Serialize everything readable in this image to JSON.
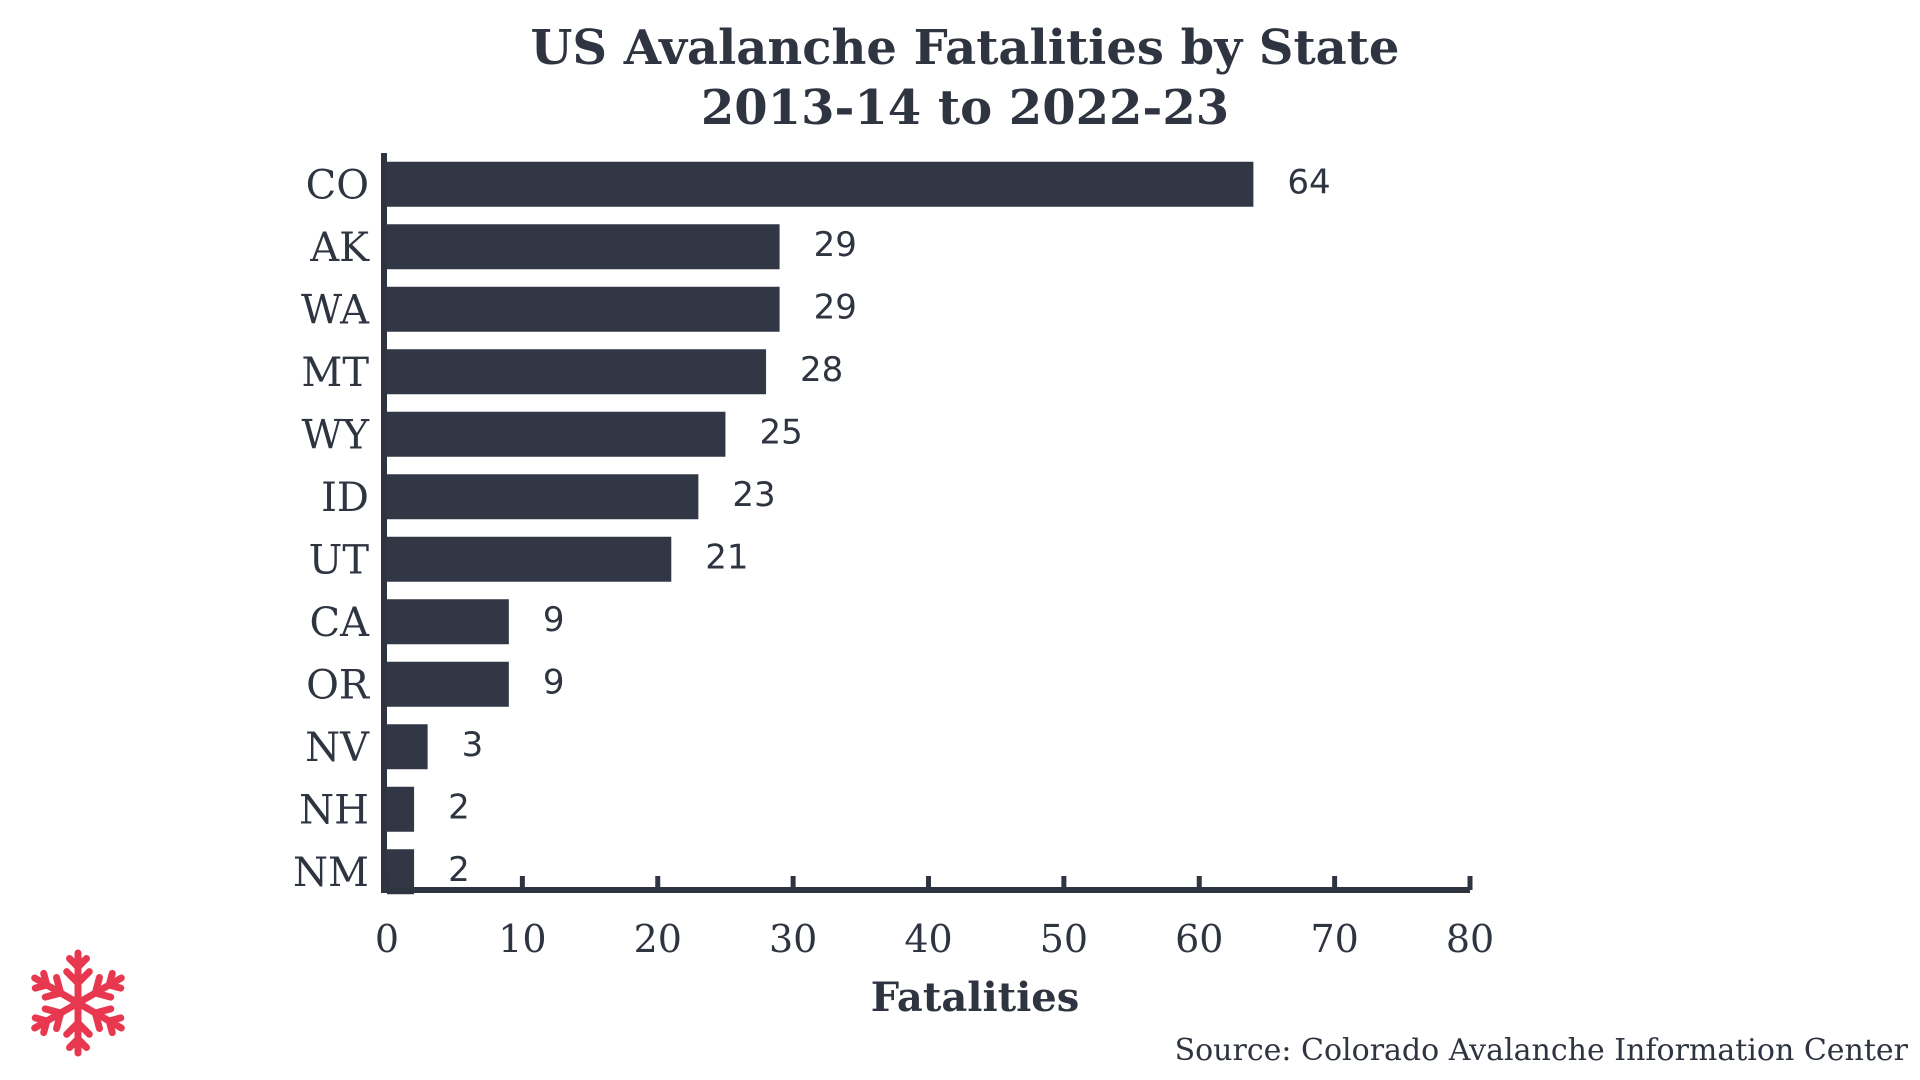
{
  "chart_data": {
    "type": "bar",
    "orientation": "horizontal",
    "title": [
      "US Avalanche Fatalities by State",
      "2013-14 to 2022-23"
    ],
    "categories": [
      "CO",
      "AK",
      "WA",
      "MT",
      "WY",
      "ID",
      "UT",
      "CA",
      "OR",
      "NV",
      "NH",
      "NM"
    ],
    "values": [
      64,
      29,
      29,
      28,
      25,
      23,
      21,
      9,
      9,
      3,
      2,
      2
    ],
    "data_labels": [
      "64",
      "29",
      "29",
      "28",
      "25",
      "23",
      "21",
      "9",
      "9",
      "3",
      "2",
      "2"
    ],
    "xlabel": "Fatalities",
    "ylabel": "",
    "xlim": [
      0,
      80
    ],
    "xticks": [
      0,
      10,
      20,
      30,
      40,
      50,
      60,
      70,
      80
    ],
    "xtick_labels": [
      "0",
      "10",
      "20",
      "30",
      "40",
      "50",
      "60",
      "70",
      "80"
    ],
    "grid": false,
    "legend": "none",
    "source": "Source: Colorado Avalanche Information Center",
    "colors": {
      "bar": "#313745",
      "text": "#2f3441",
      "axis": "#2f3441",
      "logo": "#e8384f"
    }
  },
  "logo": {
    "icon": "snowflake-icon"
  }
}
